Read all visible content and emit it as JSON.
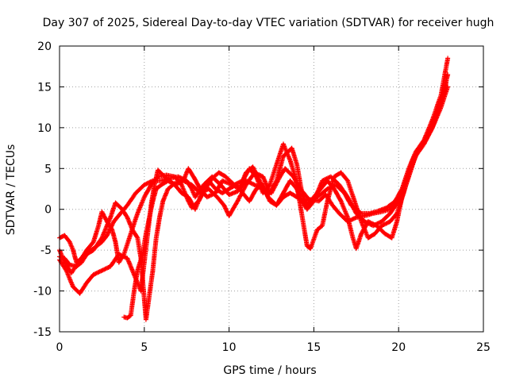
{
  "chart_data": {
    "type": "scatter",
    "title": "Day 307 of 2025, Sidereal Day-to-day VTEC variation (SDTVAR) for receiver hugh",
    "xlabel": "GPS time / hours",
    "ylabel": "SDTVAR / TECUs",
    "xlim": [
      0,
      25
    ],
    "ylim": [
      -15,
      20
    ],
    "xticks": [
      0,
      5,
      10,
      15,
      20,
      25
    ],
    "yticks": [
      -15,
      -10,
      -5,
      0,
      5,
      10,
      15,
      20
    ],
    "grid": true,
    "marker": "+",
    "marker_color": "#ff0000",
    "series": [
      {
        "points": [
          [
            0.0,
            -5.0
          ],
          [
            0.3,
            -6.5
          ],
          [
            0.7,
            -7.8
          ],
          [
            1.1,
            -6.5
          ],
          [
            1.5,
            -5.5
          ],
          [
            2.0,
            -4.8
          ],
          [
            2.5,
            -4.0
          ],
          [
            2.8,
            -3.2
          ],
          [
            3.2,
            -1.5
          ],
          [
            3.6,
            -0.5
          ],
          [
            4.0,
            0.5
          ],
          [
            4.5,
            2.0
          ],
          [
            5.0,
            3.0
          ],
          [
            5.5,
            3.5
          ],
          [
            6.0,
            3.5
          ],
          [
            6.5,
            3.8
          ],
          [
            7.0,
            4.0
          ],
          [
            7.5,
            3.5
          ],
          [
            7.8,
            2.5
          ],
          [
            8.0,
            1.5
          ],
          [
            8.5,
            3.0
          ],
          [
            9.0,
            4.0
          ],
          [
            9.5,
            3.0
          ],
          [
            10.0,
            1.8
          ],
          [
            10.5,
            2.2
          ],
          [
            11.0,
            3.5
          ],
          [
            11.5,
            3.0
          ],
          [
            12.0,
            2.5
          ],
          [
            12.5,
            2.0
          ],
          [
            13.0,
            4.0
          ],
          [
            13.3,
            5.0
          ],
          [
            13.8,
            4.0
          ],
          [
            14.2,
            2.5
          ],
          [
            14.8,
            1.0
          ],
          [
            15.2,
            1.5
          ],
          [
            15.8,
            2.5
          ],
          [
            16.3,
            3.0
          ],
          [
            16.8,
            2.0
          ],
          [
            17.2,
            0.5
          ],
          [
            17.8,
            -0.5
          ],
          [
            18.3,
            -0.5
          ],
          [
            18.8,
            -0.2
          ],
          [
            19.3,
            0.2
          ],
          [
            19.8,
            1.0
          ],
          [
            20.2,
            2.5
          ],
          [
            20.6,
            5.0
          ],
          [
            21.0,
            7.0
          ],
          [
            21.5,
            8.5
          ],
          [
            22.0,
            11.0
          ],
          [
            22.5,
            14.0
          ],
          [
            22.9,
            18.5
          ]
        ]
      },
      {
        "points": [
          [
            0.0,
            -6.2
          ],
          [
            0.4,
            -7.5
          ],
          [
            0.8,
            -9.5
          ],
          [
            1.2,
            -10.3
          ],
          [
            1.6,
            -9.0
          ],
          [
            2.0,
            -8.0
          ],
          [
            2.5,
            -7.5
          ],
          [
            3.0,
            -7.0
          ],
          [
            3.5,
            -5.5
          ],
          [
            4.0,
            -6.0
          ],
          [
            4.3,
            -7.5
          ],
          [
            4.6,
            -9.0
          ],
          [
            4.8,
            -10.0
          ],
          [
            5.0,
            -6.5
          ],
          [
            5.2,
            -3.0
          ],
          [
            5.4,
            0.5
          ],
          [
            5.6,
            3.0
          ],
          [
            5.8,
            4.8
          ],
          [
            6.2,
            4.0
          ],
          [
            6.8,
            3.0
          ],
          [
            7.3,
            3.5
          ],
          [
            7.6,
            5.0
          ],
          [
            7.9,
            4.0
          ],
          [
            8.3,
            2.5
          ],
          [
            8.7,
            1.5
          ],
          [
            9.2,
            2.0
          ],
          [
            9.6,
            3.5
          ],
          [
            10.2,
            3.0
          ],
          [
            10.6,
            2.5
          ],
          [
            11.0,
            4.5
          ],
          [
            11.4,
            5.2
          ],
          [
            11.8,
            3.5
          ],
          [
            12.3,
            1.5
          ],
          [
            12.8,
            0.5
          ],
          [
            13.2,
            2.0
          ],
          [
            13.6,
            3.5
          ],
          [
            14.0,
            2.5
          ],
          [
            14.3,
            1.0
          ],
          [
            14.6,
            0.0
          ],
          [
            15.0,
            1.0
          ],
          [
            15.5,
            3.5
          ],
          [
            16.0,
            4.0
          ],
          [
            16.5,
            3.0
          ],
          [
            17.0,
            1.5
          ],
          [
            17.5,
            -0.5
          ],
          [
            18.0,
            -1.5
          ],
          [
            18.5,
            -2.0
          ],
          [
            19.0,
            -1.5
          ],
          [
            19.5,
            -0.5
          ],
          [
            20.0,
            1.0
          ],
          [
            20.4,
            3.5
          ],
          [
            20.8,
            6.0
          ],
          [
            21.2,
            7.5
          ],
          [
            21.7,
            9.0
          ],
          [
            22.2,
            11.5
          ],
          [
            22.6,
            14.0
          ],
          [
            22.9,
            16.5
          ]
        ]
      },
      {
        "points": [
          [
            0.0,
            -3.5
          ],
          [
            0.3,
            -3.2
          ],
          [
            0.6,
            -4.0
          ],
          [
            0.8,
            -5.0
          ],
          [
            1.0,
            -6.5
          ],
          [
            1.3,
            -6.0
          ],
          [
            1.6,
            -5.0
          ],
          [
            2.0,
            -4.0
          ],
          [
            2.3,
            -2.0
          ],
          [
            2.5,
            -0.3
          ],
          [
            2.8,
            -1.5
          ],
          [
            3.1,
            -2.5
          ],
          [
            3.3,
            -4.0
          ],
          [
            3.5,
            -6.5
          ],
          [
            3.8,
            -5.5
          ],
          [
            4.2,
            -3.0
          ],
          [
            4.6,
            -0.5
          ],
          [
            5.0,
            1.5
          ],
          [
            5.4,
            3.0
          ],
          [
            5.8,
            4.0
          ],
          [
            6.3,
            4.2
          ],
          [
            6.8,
            4.0
          ],
          [
            7.2,
            3.0
          ],
          [
            7.6,
            1.0
          ],
          [
            7.8,
            0.2
          ],
          [
            8.2,
            1.0
          ],
          [
            8.6,
            2.5
          ],
          [
            9.0,
            3.8
          ],
          [
            9.4,
            4.5
          ],
          [
            9.8,
            4.0
          ],
          [
            10.3,
            3.0
          ],
          [
            10.8,
            3.5
          ],
          [
            11.2,
            5.0
          ],
          [
            11.6,
            4.0
          ],
          [
            12.0,
            2.0
          ],
          [
            12.4,
            3.0
          ],
          [
            12.8,
            5.5
          ],
          [
            13.2,
            8.0
          ],
          [
            13.6,
            6.0
          ],
          [
            13.9,
            4.0
          ],
          [
            14.2,
            0.5
          ],
          [
            14.4,
            -2.0
          ],
          [
            14.6,
            -4.5
          ],
          [
            14.8,
            -4.8
          ],
          [
            15.2,
            -2.5
          ],
          [
            15.5,
            -2.0
          ],
          [
            15.8,
            1.0
          ],
          [
            16.2,
            4.0
          ],
          [
            16.6,
            4.5
          ],
          [
            17.0,
            3.5
          ],
          [
            17.4,
            1.0
          ],
          [
            17.8,
            -1.5
          ],
          [
            18.2,
            -3.5
          ],
          [
            18.6,
            -3.0
          ],
          [
            19.0,
            -2.0
          ],
          [
            19.5,
            -1.5
          ],
          [
            19.9,
            -0.5
          ],
          [
            20.3,
            2.0
          ],
          [
            20.7,
            5.0
          ],
          [
            21.1,
            7.0
          ],
          [
            21.6,
            8.5
          ],
          [
            22.1,
            10.5
          ],
          [
            22.5,
            12.5
          ],
          [
            22.9,
            15.0
          ]
        ]
      },
      {
        "points": [
          [
            0.0,
            -5.8
          ],
          [
            0.3,
            -6.0
          ],
          [
            0.6,
            -6.8
          ],
          [
            1.0,
            -7.0
          ],
          [
            1.3,
            -6.5
          ],
          [
            1.6,
            -5.5
          ],
          [
            2.0,
            -5.0
          ],
          [
            2.5,
            -3.5
          ],
          [
            3.0,
            -1.0
          ],
          [
            3.3,
            0.8
          ],
          [
            3.7,
            0.0
          ],
          [
            4.0,
            -1.0
          ],
          [
            4.3,
            -2.5
          ],
          [
            4.6,
            -3.5
          ],
          [
            4.8,
            -6.0
          ],
          [
            5.0,
            -11.0
          ],
          [
            5.1,
            -13.5
          ],
          [
            5.3,
            -10.5
          ],
          [
            5.5,
            -7.5
          ],
          [
            5.7,
            -3.5
          ],
          [
            5.9,
            -1.0
          ],
          [
            6.1,
            1.0
          ],
          [
            6.4,
            2.5
          ],
          [
            6.8,
            3.2
          ],
          [
            7.3,
            3.5
          ],
          [
            7.8,
            3.0
          ],
          [
            8.3,
            2.0
          ],
          [
            8.8,
            2.5
          ],
          [
            9.3,
            1.5
          ],
          [
            9.7,
            0.5
          ],
          [
            10.0,
            -0.8
          ],
          [
            10.5,
            1.0
          ],
          [
            11.0,
            3.0
          ],
          [
            11.5,
            4.5
          ],
          [
            12.0,
            4.0
          ],
          [
            12.4,
            2.0
          ],
          [
            12.8,
            3.5
          ],
          [
            13.2,
            6.5
          ],
          [
            13.7,
            7.5
          ],
          [
            14.0,
            5.5
          ],
          [
            14.3,
            2.0
          ],
          [
            14.6,
            0.5
          ],
          [
            15.0,
            1.5
          ],
          [
            15.4,
            2.5
          ],
          [
            15.8,
            3.5
          ],
          [
            16.2,
            2.5
          ],
          [
            16.6,
            1.0
          ],
          [
            17.0,
            -1.0
          ],
          [
            17.3,
            -3.5
          ],
          [
            17.5,
            -4.8
          ],
          [
            17.8,
            -3.0
          ],
          [
            18.2,
            -1.5
          ],
          [
            18.7,
            -2.0
          ],
          [
            19.2,
            -3.0
          ],
          [
            19.6,
            -3.5
          ],
          [
            19.9,
            -1.5
          ],
          [
            20.2,
            1.5
          ],
          [
            20.6,
            4.0
          ],
          [
            21.0,
            6.5
          ],
          [
            21.5,
            8.0
          ],
          [
            22.0,
            10.0
          ],
          [
            22.4,
            12.5
          ],
          [
            22.8,
            15.5
          ]
        ]
      },
      {
        "points": [
          [
            3.8,
            -13.2
          ],
          [
            4.0,
            -13.3
          ],
          [
            4.2,
            -13.0
          ],
          [
            4.4,
            -10.0
          ],
          [
            4.6,
            -7.5
          ],
          [
            4.9,
            -5.5
          ],
          [
            5.1,
            -3.0
          ],
          [
            5.3,
            -1.0
          ],
          [
            5.5,
            1.0
          ],
          [
            5.7,
            2.5
          ],
          [
            6.0,
            3.0
          ],
          [
            6.4,
            3.5
          ],
          [
            6.8,
            3.0
          ],
          [
            7.2,
            2.0
          ],
          [
            7.6,
            1.5
          ],
          [
            8.0,
            0.0
          ],
          [
            8.4,
            2.0
          ],
          [
            8.8,
            3.5
          ],
          [
            9.2,
            2.5
          ],
          [
            9.6,
            2.0
          ],
          [
            10.0,
            2.5
          ],
          [
            10.4,
            3.0
          ],
          [
            10.8,
            2.0
          ],
          [
            11.2,
            1.0
          ],
          [
            11.6,
            2.5
          ],
          [
            12.0,
            3.0
          ],
          [
            12.4,
            1.0
          ],
          [
            12.8,
            0.5
          ],
          [
            13.2,
            1.5
          ],
          [
            13.6,
            2.0
          ],
          [
            14.0,
            1.5
          ],
          [
            14.4,
            1.0
          ],
          [
            14.8,
            1.2
          ],
          [
            15.3,
            1.0
          ],
          [
            15.7,
            1.8
          ],
          [
            16.1,
            0.5
          ],
          [
            16.5,
            -0.5
          ],
          [
            17.0,
            -1.5
          ],
          [
            17.5,
            -1.0
          ],
          [
            18.0,
            -0.8
          ],
          [
            18.5,
            -0.5
          ],
          [
            19.0,
            -0.3
          ],
          [
            19.5,
            0.0
          ],
          [
            20.0,
            1.0
          ]
        ]
      }
    ]
  }
}
